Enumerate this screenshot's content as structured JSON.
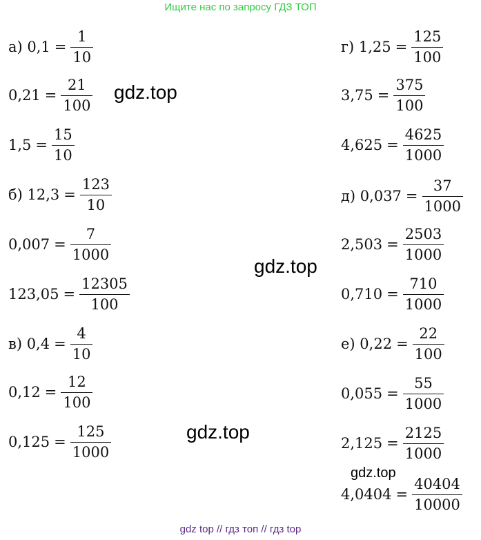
{
  "banner": "Ищите нас по запросу ГДЗ ТОП",
  "footer": "gdz top  //  гдз топ  //  гдз top",
  "watermarks": [
    "gdz.top",
    "gdz.top",
    "gdz.top",
    "gdz.top"
  ],
  "left_column": [
    {
      "lhs": "а) 0,1",
      "num": "1",
      "den": "10"
    },
    {
      "lhs": "0,21",
      "num": "21",
      "den": "100"
    },
    {
      "lhs": "1,5",
      "num": "15",
      "den": "10"
    },
    {
      "lhs": "б) 12,3",
      "num": "123",
      "den": "10"
    },
    {
      "lhs": "0,007",
      "num": "7",
      "den": "1000"
    },
    {
      "lhs": "123,05",
      "num": "12305",
      "den": "100"
    },
    {
      "lhs": "в) 0,4",
      "num": "4",
      "den": "10"
    },
    {
      "lhs": "0,12",
      "num": "12",
      "den": "100"
    },
    {
      "lhs": "0,125",
      "num": "125",
      "den": "1000"
    }
  ],
  "right_column": [
    {
      "lhs": "г) 1,25",
      "num": "125",
      "den": "100"
    },
    {
      "lhs": "3,75",
      "num": "375",
      "den": "100"
    },
    {
      "lhs": "4,625",
      "num": "4625",
      "den": "1000"
    },
    {
      "lhs": "д) 0,037",
      "num": "37",
      "den": "1000"
    },
    {
      "lhs": "2,503",
      "num": "2503",
      "den": "1000"
    },
    {
      "lhs": "0,710",
      "num": "710",
      "den": "1000"
    },
    {
      "lhs": "е) 0,22",
      "num": "22",
      "den": "100"
    },
    {
      "lhs": "0,055",
      "num": "55",
      "den": "1000"
    },
    {
      "lhs": "2,125",
      "num": "2125",
      "den": "1000"
    },
    {
      "lhs": "4,0404",
      "num": "40404",
      "den": "10000"
    }
  ]
}
